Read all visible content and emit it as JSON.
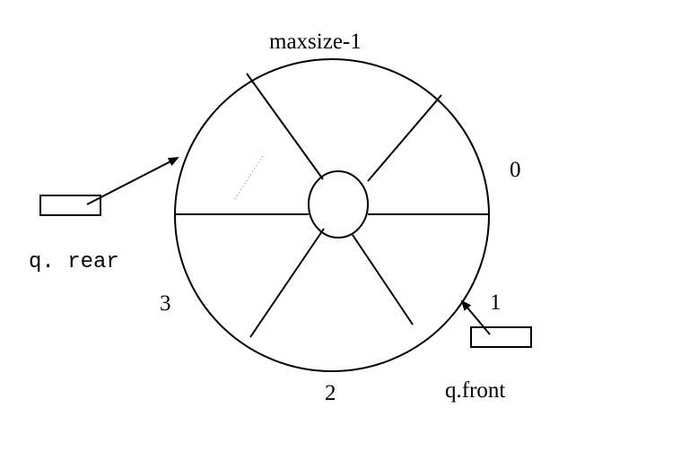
{
  "diagram": {
    "labels": {
      "maxsize": "maxsize-1",
      "slot0": "0",
      "slot1": "1",
      "slot2": "2",
      "slot3": "3",
      "rear": "q. rear",
      "front": "q.front"
    },
    "colors": {
      "stroke": "#000000",
      "background": "#ffffff"
    }
  }
}
